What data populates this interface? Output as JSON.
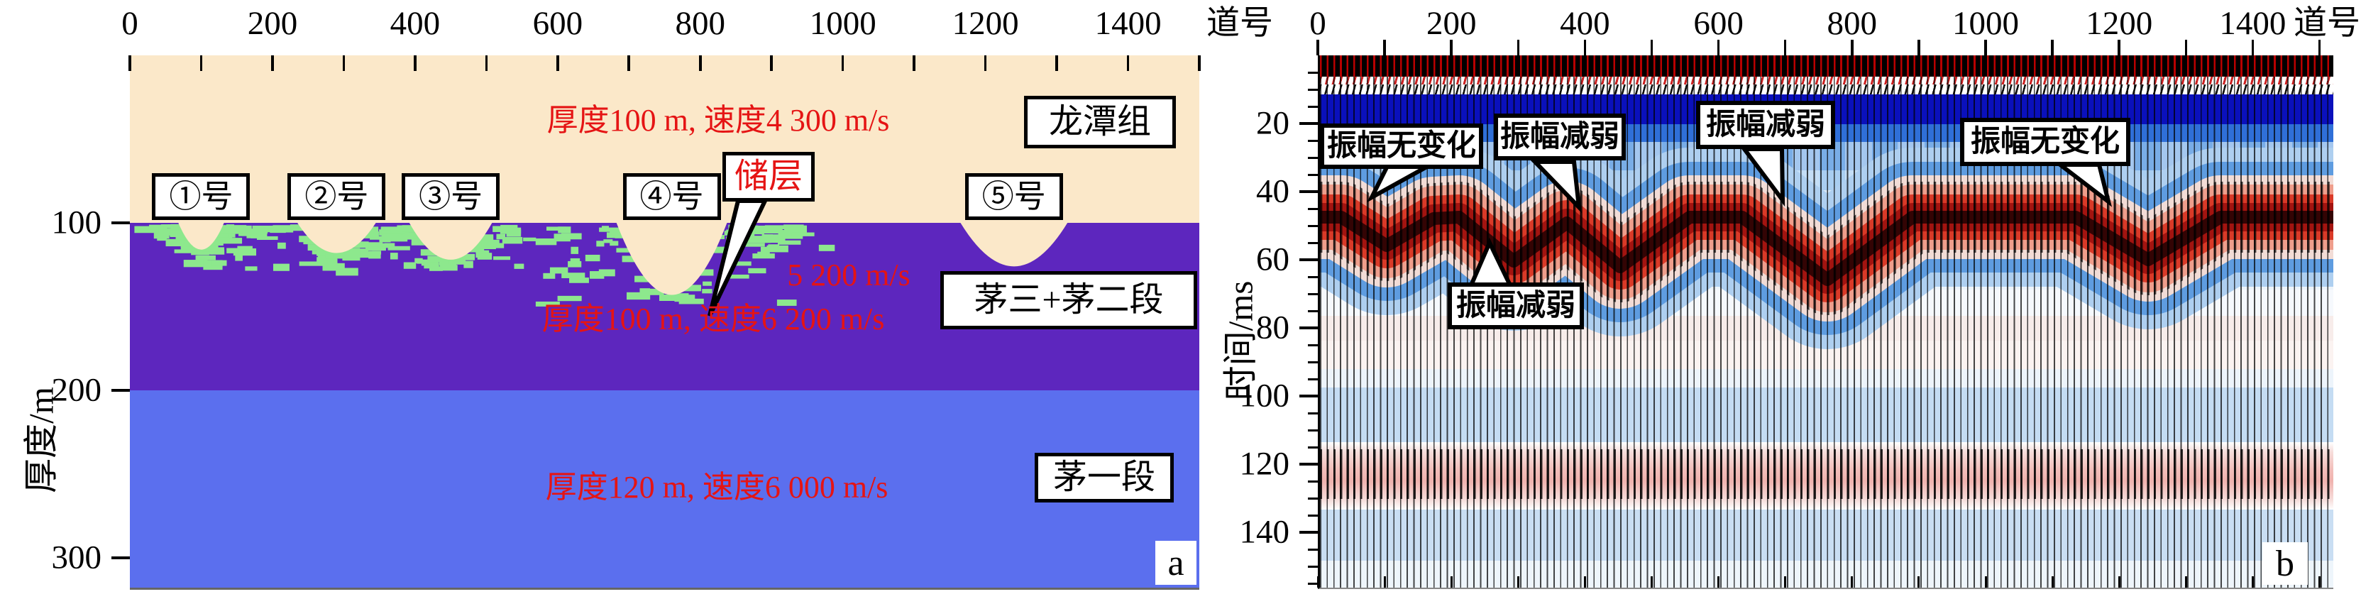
{
  "chart_data": [
    {
      "id": "a",
      "type": "area",
      "corner_label": "a",
      "x_axis": {
        "title": "道号",
        "ticks": [
          "0",
          "200",
          "400",
          "600",
          "800",
          "1000",
          "1200",
          "1400"
        ],
        "minor_step_traces": 100,
        "range": [
          0,
          1500
        ]
      },
      "y_axis": {
        "title": "厚度/m",
        "ticks": [
          "100",
          "200",
          "300"
        ],
        "range_m": [
          0,
          318
        ]
      },
      "layers": [
        {
          "name": "龙潭组",
          "annotation": "厚度100 m, 速度4 300 m/s",
          "top_m": 0,
          "base_m": 100,
          "thickness_m": 100,
          "velocity_m_per_s": 4300,
          "color": "#FBE8C9"
        },
        {
          "name": "茅三+茅二段",
          "annotation": "厚度100 m, 速度6 200 m/s",
          "top_m": 100,
          "base_m": 200,
          "thickness_m": 100,
          "velocity_m_per_s": 6200,
          "color": "#5D26BE"
        },
        {
          "name": "茅一段",
          "annotation": "厚度120 m, 速度6 000 m/s",
          "top_m": 200,
          "base_m": 320,
          "thickness_m": 120,
          "velocity_m_per_s": 6000,
          "color": "#5B6FEE"
        }
      ],
      "reservoir": {
        "label": "储层",
        "velocity_annotation": "5 200 m/s",
        "velocity_m_per_s": 5200,
        "color": "#8DE88D"
      },
      "caves": [
        {
          "label": "①号",
          "trace": 100,
          "width_traces": 64,
          "base_depth_m": 116,
          "reservoir_halo": true
        },
        {
          "label": "②号",
          "trace": 290,
          "width_traces": 110,
          "base_depth_m": 118,
          "reservoir_halo": true
        },
        {
          "label": "③号",
          "trace": 450,
          "width_traces": 116,
          "base_depth_m": 122,
          "reservoir_halo": true
        },
        {
          "label": "④号",
          "trace": 760,
          "width_traces": 155,
          "base_depth_m": 143,
          "reservoir_halo": true
        },
        {
          "label": "⑤号",
          "trace": 1240,
          "width_traces": 150,
          "base_depth_m": 126,
          "reservoir_halo": false
        }
      ]
    },
    {
      "id": "b",
      "type": "heatmap",
      "corner_label": "b",
      "x_axis": {
        "title": "道号",
        "ticks": [
          "0",
          "200",
          "400",
          "600",
          "800",
          "1000",
          "1200",
          "1400"
        ],
        "minor_step_traces": 100,
        "range": [
          0,
          1500
        ]
      },
      "y_axis": {
        "title": "时间/ms",
        "ticks": [
          "20",
          "40",
          "60",
          "80",
          "100",
          "120",
          "140"
        ],
        "minor_step_ms": 5,
        "range_ms": [
          0,
          156
        ]
      },
      "events": {
        "first_arrival_ms": [
          0,
          20
        ],
        "main_reflection_ms": [
          40,
          62
        ],
        "pull_down_at_traces": [
          100,
          290,
          450,
          760,
          1240
        ],
        "deep_reflection_ms": [
          115,
          132
        ]
      },
      "callouts": [
        {
          "text": "振幅无变化",
          "refers_to_trace": 100
        },
        {
          "text": "振幅减弱",
          "refers_to_trace": 450
        },
        {
          "text": "振幅减弱",
          "refers_to_trace": 760
        },
        {
          "text": "振幅无变化",
          "refers_to_trace": 1240
        },
        {
          "text": "振幅减弱",
          "refers_to_trace": 290
        }
      ],
      "palette": {
        "first_arrival_black": "#000000",
        "first_arrival_red": "#B80000",
        "strong_blue": "#0A10BC",
        "mid_blue": "#2F6FD8",
        "light_blue": "#79ADE7",
        "pale_blue": "#C4DCF3",
        "reflector_red": "#C41E14",
        "deep_pink": "#F2BDB9"
      }
    }
  ]
}
